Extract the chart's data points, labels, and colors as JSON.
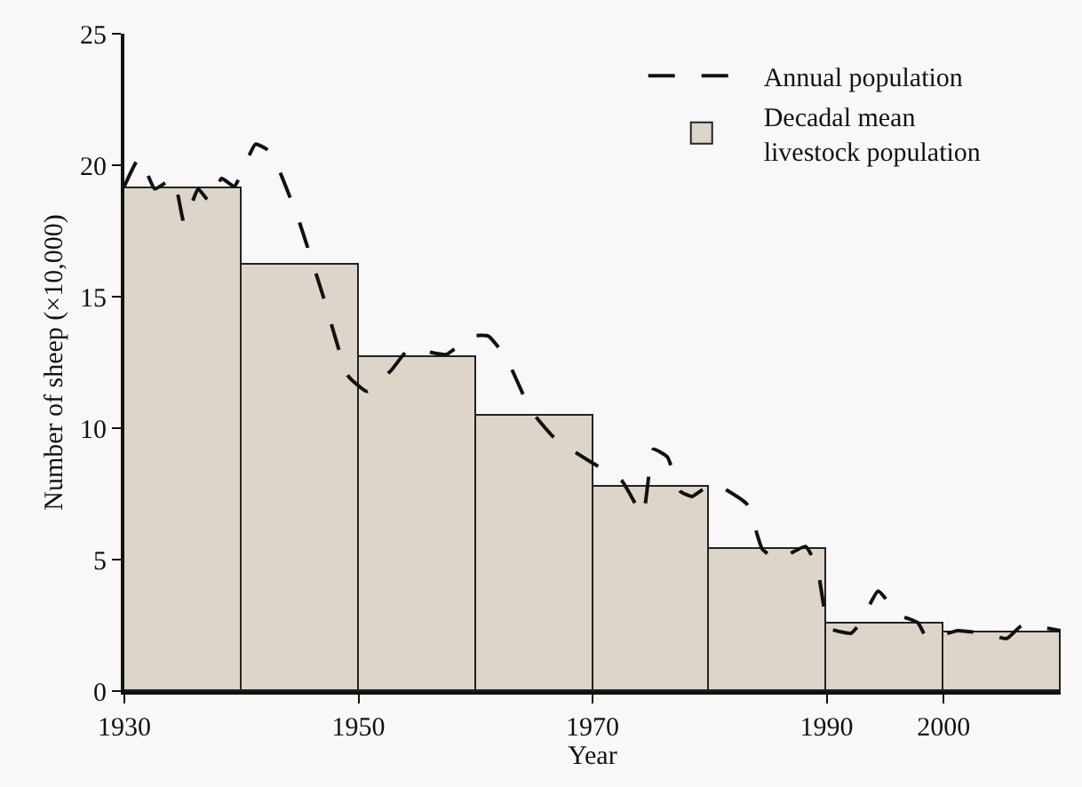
{
  "chart_data": {
    "type": "bar",
    "xlabel": "Year",
    "ylabel": "Number of sheep (×10,000)",
    "xlim": [
      1930,
      2010
    ],
    "xticks": [
      1930,
      1950,
      1970,
      1990,
      2000
    ],
    "ylim": [
      0,
      25
    ],
    "yticks": [
      0,
      5,
      10,
      15,
      20,
      25
    ],
    "grid": false,
    "legend": "top right",
    "series": [
      {
        "name": "Annual population",
        "type": "line",
        "color": "#111111",
        "line_style": "dashed",
        "marker": "none",
        "x": [
          1930,
          1931.3,
          1932.6,
          1934.2,
          1935.1,
          1936.3,
          1937.3,
          1938.3,
          1939.4,
          1941.2,
          1942.5,
          1944.9,
          1947,
          1949.1,
          1950.7,
          1952.8,
          1954.3,
          1957.5,
          1959.6,
          1961.1,
          1962.6,
          1964.7,
          1966.8,
          1969.9,
          1972.5,
          1974.3,
          1975.2,
          1976.4,
          1977.5,
          1978.5,
          1980.3,
          1983.2,
          1984.5,
          1985.8,
          1988.2,
          1989.2,
          1990.2,
          1992.1,
          1992.9,
          1994.4,
          1996.2,
          1997.8,
          1998.6,
          2001.2,
          2003.3,
          2005.4,
          2006.7,
          2010
        ],
        "values": [
          19.2,
          20.3,
          19.1,
          19.5,
          17.8,
          19.1,
          18.6,
          19.5,
          19.2,
          20.8,
          20.5,
          17.9,
          15.0,
          12.0,
          11.4,
          12.2,
          13.0,
          12.8,
          13.5,
          13.5,
          12.7,
          10.7,
          9.6,
          8.7,
          8.0,
          6.7,
          9.2,
          8.9,
          7.6,
          7.4,
          7.9,
          7.1,
          5.4,
          5.0,
          5.5,
          4.7,
          2.4,
          2.2,
          2.6,
          3.8,
          2.9,
          2.6,
          2.0,
          2.3,
          2.2,
          2.0,
          2.5,
          2.3
        ]
      },
      {
        "name": "Decadal mean livestock population",
        "color": "#ddd5c9",
        "x": [
          1935,
          1945,
          1955,
          1965,
          1975,
          1985,
          1995,
          2005
        ],
        "values": [
          19.1,
          16.2,
          12.7,
          10.5,
          7.8,
          5.4,
          2.6,
          2.2
        ]
      }
    ]
  }
}
